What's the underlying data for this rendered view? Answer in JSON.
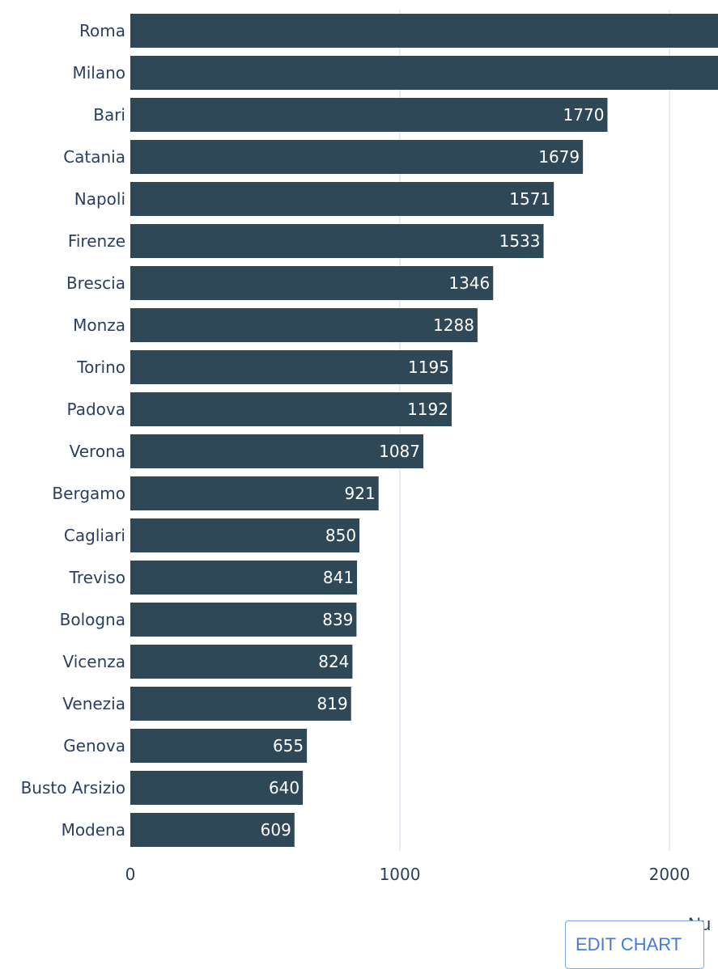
{
  "chart_data": {
    "type": "bar",
    "orientation": "horizontal",
    "categories": [
      "Roma",
      "Milano",
      "Bari",
      "Catania",
      "Napoli",
      "Firenze",
      "Brescia",
      "Monza",
      "Torino",
      "Padova",
      "Verona",
      "Bergamo",
      "Cagliari",
      "Treviso",
      "Bologna",
      "Vicenza",
      "Venezia",
      "Genova",
      "Busto Arsizio",
      "Modena"
    ],
    "values": [
      2190,
      2185,
      1770,
      1679,
      1571,
      1533,
      1346,
      1288,
      1195,
      1192,
      1087,
      921,
      850,
      841,
      839,
      824,
      819,
      655,
      640,
      609
    ],
    "value_labels_shown": [
      false,
      false,
      true,
      true,
      true,
      true,
      true,
      true,
      true,
      true,
      true,
      true,
      true,
      true,
      true,
      true,
      true,
      true,
      true,
      true
    ],
    "xticks": [
      0,
      1000,
      2000
    ],
    "xlim": [
      0,
      2180
    ],
    "grid": true,
    "bar_color": "#2f4858",
    "grid_color": "#e5ecf6",
    "xlabel": "Nu"
  },
  "edit_button": {
    "label": "EDIT CHART"
  }
}
